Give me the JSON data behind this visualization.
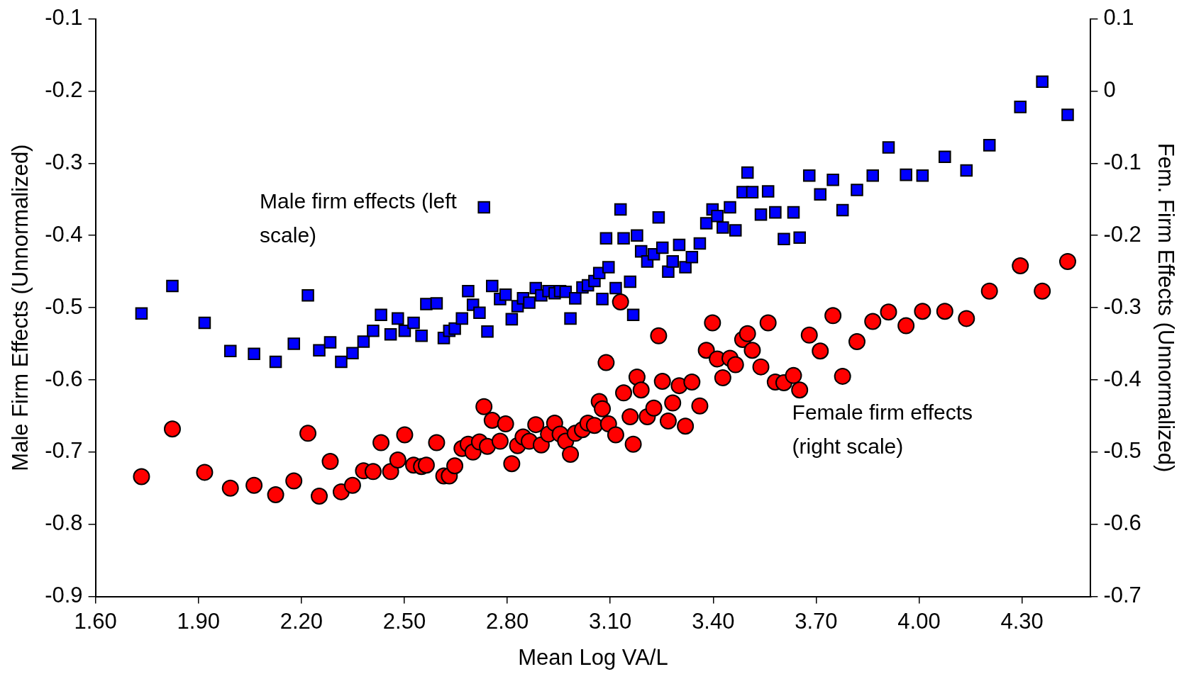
{
  "chart_data": {
    "type": "scatter",
    "xlabel": "Mean Log VA/L",
    "ylabel": "Male Firm Effects (Unnormalized)",
    "y2label": "Fem. Firm Effects (Unnormalized)",
    "xlim": [
      1.6,
      4.5
    ],
    "xticks": [
      {
        "value": 1.6,
        "label": "1.60"
      },
      {
        "value": 1.9,
        "label": "1.90"
      },
      {
        "value": 2.2,
        "label": "2.20"
      },
      {
        "value": 2.5,
        "label": "2.50"
      },
      {
        "value": 2.8,
        "label": "2.80"
      },
      {
        "value": 3.1,
        "label": "3.10"
      },
      {
        "value": 3.4,
        "label": "3.40"
      },
      {
        "value": 3.7,
        "label": "3.70"
      },
      {
        "value": 4.0,
        "label": "4.00"
      },
      {
        "value": 4.3,
        "label": "4.30"
      }
    ],
    "ylim": [
      -0.9,
      -0.1
    ],
    "yticks": [
      -0.9,
      -0.8,
      -0.7,
      -0.6,
      -0.5,
      -0.4,
      -0.3,
      -0.2,
      -0.1
    ],
    "y2lim": [
      -0.7,
      0.1
    ],
    "y2ticks": [
      -0.7,
      -0.6,
      -0.5,
      -0.4,
      -0.3,
      -0.2,
      -0.1,
      0,
      0.1
    ],
    "legend": false,
    "series": [
      {
        "name": "Male firm effects (left scale)",
        "color": "#0000ff",
        "marker": "square",
        "axis": "y",
        "x": [
          1.734,
          1.824,
          1.918,
          1.993,
          2.062,
          2.125,
          2.178,
          2.219,
          2.252,
          2.284,
          2.316,
          2.349,
          2.381,
          2.409,
          2.432,
          2.46,
          2.481,
          2.501,
          2.527,
          2.55,
          2.564,
          2.594,
          2.615,
          2.631,
          2.647,
          2.668,
          2.686,
          2.7,
          2.719,
          2.732,
          2.742,
          2.756,
          2.779,
          2.795,
          2.813,
          2.83,
          2.846,
          2.864,
          2.883,
          2.899,
          2.92,
          2.938,
          2.954,
          2.97,
          2.984,
          2.998,
          3.019,
          3.035,
          3.054,
          3.068,
          3.077,
          3.088,
          3.095,
          3.116,
          3.13,
          3.139,
          3.158,
          3.167,
          3.178,
          3.19,
          3.208,
          3.227,
          3.241,
          3.252,
          3.269,
          3.282,
          3.301,
          3.319,
          3.338,
          3.361,
          3.38,
          3.398,
          3.412,
          3.428,
          3.449,
          3.465,
          3.486,
          3.5,
          3.514,
          3.539,
          3.56,
          3.581,
          3.606,
          3.634,
          3.652,
          3.68,
          3.712,
          3.749,
          3.777,
          3.819,
          3.865,
          3.911,
          3.962,
          4.01,
          4.075,
          4.138,
          4.205,
          4.295,
          4.359,
          4.433
        ],
        "values": [
          -0.508,
          -0.47,
          -0.521,
          -0.56,
          -0.564,
          -0.575,
          -0.55,
          -0.483,
          -0.559,
          -0.548,
          -0.575,
          -0.563,
          -0.547,
          -0.532,
          -0.51,
          -0.537,
          -0.515,
          -0.532,
          -0.521,
          -0.539,
          -0.495,
          -0.494,
          -0.542,
          -0.532,
          -0.529,
          -0.515,
          -0.477,
          -0.496,
          -0.507,
          -0.361,
          -0.533,
          -0.47,
          -0.488,
          -0.482,
          -0.516,
          -0.498,
          -0.487,
          -0.493,
          -0.473,
          -0.483,
          -0.477,
          -0.48,
          -0.477,
          -0.478,
          -0.515,
          -0.487,
          -0.472,
          -0.469,
          -0.463,
          -0.452,
          -0.488,
          -0.404,
          -0.444,
          -0.473,
          -0.364,
          -0.404,
          -0.464,
          -0.51,
          -0.4,
          -0.422,
          -0.436,
          -0.426,
          -0.375,
          -0.417,
          -0.45,
          -0.436,
          -0.413,
          -0.444,
          -0.43,
          -0.411,
          -0.383,
          -0.364,
          -0.373,
          -0.389,
          -0.361,
          -0.393,
          -0.34,
          -0.313,
          -0.34,
          -0.371,
          -0.339,
          -0.368,
          -0.405,
          -0.368,
          -0.403,
          -0.317,
          -0.343,
          -0.323,
          -0.365,
          -0.337,
          -0.317,
          -0.278,
          -0.316,
          -0.317,
          -0.291,
          -0.31,
          -0.275,
          -0.222,
          -0.187,
          -0.233
        ]
      },
      {
        "name": "Female firm effects (right scale)",
        "color": "#ff0000",
        "marker": "circle",
        "axis": "y2",
        "x": [
          1.734,
          1.824,
          1.918,
          1.993,
          2.062,
          2.125,
          2.178,
          2.219,
          2.252,
          2.284,
          2.316,
          2.349,
          2.381,
          2.409,
          2.432,
          2.46,
          2.481,
          2.501,
          2.527,
          2.55,
          2.564,
          2.594,
          2.615,
          2.631,
          2.647,
          2.668,
          2.686,
          2.7,
          2.719,
          2.732,
          2.742,
          2.756,
          2.779,
          2.795,
          2.813,
          2.83,
          2.846,
          2.864,
          2.883,
          2.899,
          2.92,
          2.938,
          2.954,
          2.97,
          2.984,
          2.998,
          3.019,
          3.035,
          3.054,
          3.068,
          3.077,
          3.088,
          3.095,
          3.116,
          3.13,
          3.139,
          3.158,
          3.167,
          3.178,
          3.19,
          3.208,
          3.227,
          3.241,
          3.252,
          3.269,
          3.282,
          3.301,
          3.319,
          3.338,
          3.361,
          3.38,
          3.398,
          3.412,
          3.428,
          3.449,
          3.465,
          3.486,
          3.5,
          3.514,
          3.539,
          3.56,
          3.581,
          3.606,
          3.634,
          3.652,
          3.68,
          3.712,
          3.749,
          3.777,
          3.819,
          3.865,
          3.911,
          3.962,
          4.01,
          4.075,
          4.138,
          4.205,
          4.295,
          4.359,
          4.433
        ],
        "values": [
          -0.534,
          -0.468,
          -0.528,
          -0.55,
          -0.546,
          -0.559,
          -0.54,
          -0.474,
          -0.561,
          -0.513,
          -0.555,
          -0.546,
          -0.526,
          -0.527,
          -0.487,
          -0.527,
          -0.511,
          -0.476,
          -0.518,
          -0.52,
          -0.518,
          -0.487,
          -0.533,
          -0.533,
          -0.519,
          -0.495,
          -0.489,
          -0.5,
          -0.486,
          -0.437,
          -0.492,
          -0.456,
          -0.485,
          -0.461,
          -0.516,
          -0.491,
          -0.479,
          -0.485,
          -0.462,
          -0.49,
          -0.475,
          -0.46,
          -0.475,
          -0.485,
          -0.503,
          -0.474,
          -0.469,
          -0.46,
          -0.463,
          -0.43,
          -0.44,
          -0.376,
          -0.461,
          -0.476,
          -0.292,
          -0.418,
          -0.451,
          -0.489,
          -0.396,
          -0.414,
          -0.451,
          -0.439,
          -0.339,
          -0.402,
          -0.457,
          -0.432,
          -0.408,
          -0.464,
          -0.403,
          -0.436,
          -0.359,
          -0.321,
          -0.371,
          -0.397,
          -0.37,
          -0.379,
          -0.344,
          -0.336,
          -0.359,
          -0.382,
          -0.321,
          -0.403,
          -0.404,
          -0.394,
          -0.414,
          -0.338,
          -0.36,
          -0.311,
          -0.395,
          -0.347,
          -0.319,
          -0.306,
          -0.325,
          -0.305,
          -0.305,
          -0.315,
          -0.277,
          -0.242,
          -0.277,
          -0.236
        ]
      }
    ]
  }
}
